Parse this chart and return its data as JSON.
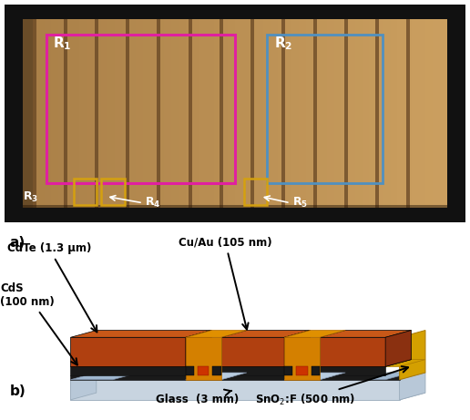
{
  "fig_width": 5.16,
  "fig_height": 4.61,
  "dpi": 100,
  "panel_a_label": "a)",
  "panel_b_label": "b)",
  "R1_color": "#e020a0",
  "R2_color": "#5090c0",
  "R_small_color": "#d4a010",
  "annotations": {
    "CdTe": "CdTe (1.3 μm)",
    "CuAu": "Cu/Au (105 nm)",
    "CdS": "CdS\n(100 nm)",
    "Glass": "Glass  (3 mm)",
    "SnO2": "SnO$_2$:F (500 nm)"
  },
  "colors": {
    "cdte_top_face": "#c85818",
    "cdte_front_face": "#b04010",
    "cdte_side_face": "#8a3010",
    "back_contact_front": "#1a1a1a",
    "back_contact_top": "#282828",
    "cds_blue_top": "#a0b8d0",
    "cds_blue_seg": "#b8cce0",
    "glass_top": "#e0e8f0",
    "glass_front": "#c8d4e0",
    "glass_side": "#b8c8d8",
    "glass_bottom": "#c0ccd8",
    "snof_gold": "#d4a000",
    "snof_side": "#c89000",
    "groove_orange": "#d48000",
    "groove_red": "#cc3300",
    "photo_bg_left": "#b8986a",
    "photo_bg_right": "#c8ac7a",
    "photo_border": "#111111",
    "stripe_light": "#c0a070",
    "stripe_dark": "#907040",
    "stripe_sep": "#6a5030"
  }
}
